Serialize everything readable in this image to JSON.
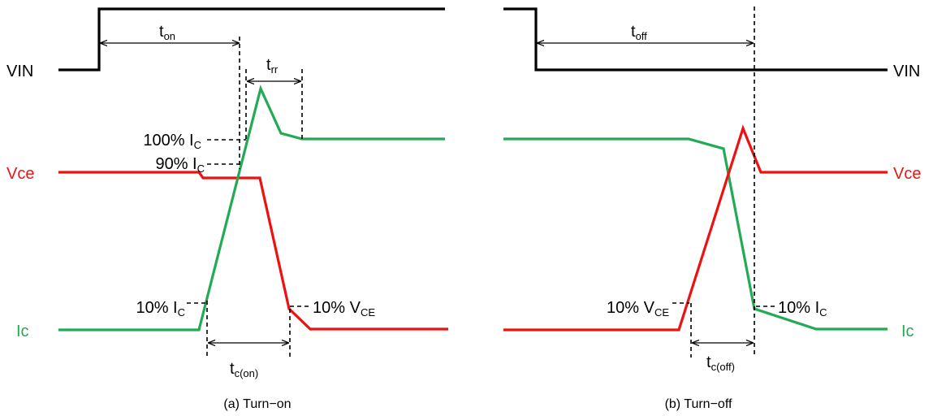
{
  "colors": {
    "vin": "#000000",
    "vce": "#ee1111",
    "ic": "#22aa55"
  },
  "turn_on": {
    "caption": "(a) Turn−on",
    "signal_labels": {
      "vin": "VIN",
      "vce": "Vce",
      "ic": "Ic"
    },
    "level_labels": {
      "ic_100": {
        "main": "100% I",
        "sub": "C"
      },
      "ic_90": {
        "main": "90% I",
        "sub": "C"
      },
      "ic_10": {
        "main": "10% I",
        "sub": "C"
      },
      "vce_10": {
        "main": "10% V",
        "sub": "CE"
      }
    },
    "intervals": {
      "t_on": {
        "main": "t",
        "sub": "on"
      },
      "t_rr": {
        "main": "t",
        "sub": "rr"
      },
      "t_c_on": {
        "main": "t",
        "sub": "c(on)"
      }
    }
  },
  "turn_off": {
    "caption": "(b) Turn−off",
    "signal_labels": {
      "vin": "VIN",
      "vce": "Vce",
      "ic": "Ic"
    },
    "level_labels": {
      "vce_10": {
        "main": "10% V",
        "sub": "CE"
      },
      "ic_10": {
        "main": "10% I",
        "sub": "C"
      }
    },
    "intervals": {
      "t_off": {
        "main": "t",
        "sub": "off"
      },
      "t_c_off": {
        "main": "t",
        "sub": "c(off)"
      }
    }
  }
}
